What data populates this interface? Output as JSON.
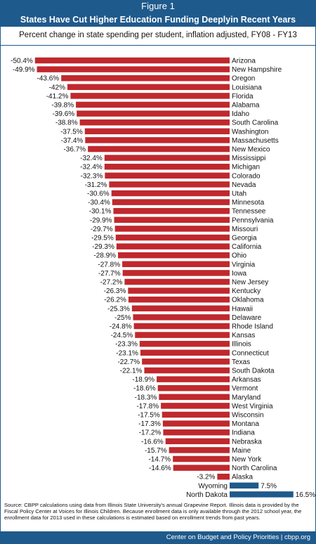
{
  "figure_label": "Figure 1",
  "colors": {
    "negative": "#c0282d",
    "positive": "#1f5a8c",
    "banner": "#1f5a8c"
  },
  "chart_data": {
    "type": "bar",
    "orientation": "horizontal",
    "title": "States Have Cut Higher Education Funding Deeplyin Recent Years",
    "subtitle": "Percent change in state spending per student, inflation adjusted, FY08 - FY13",
    "categories": [
      "Arizona",
      "New Hampshire",
      "Oregon",
      "Louisiana",
      "Florida",
      "Alabama",
      "Idaho",
      "South Carolina",
      "Washington",
      "Massachusetts",
      "New Mexico",
      "Mississippi",
      "Michigan",
      "Colorado",
      "Nevada",
      "Utah",
      "Minnesota",
      "Tennessee",
      "Pennsylvania",
      "Missouri",
      "Georgia",
      "California",
      "Ohio",
      "Virginia",
      "Iowa",
      "New Jersey",
      "Kentucky",
      "Oklahoma",
      "Hawaii",
      "Delaware",
      "Rhode Island",
      "Kansas",
      "Illinois",
      "Connecticut",
      "Texas",
      "South Dakota",
      "Arkansas",
      "Vermont",
      "Maryland",
      "West Virginia",
      "Wisconsin",
      "Montana",
      "Indiana",
      "Nebraska",
      "Maine",
      "New York",
      "North Carolina",
      "Alaska",
      "Wyoming",
      "North Dakota"
    ],
    "values": [
      -50.4,
      -49.9,
      -43.6,
      -42,
      -41.2,
      -39.8,
      -39.6,
      -38.8,
      -37.5,
      -37.4,
      -36.7,
      -32.4,
      -32.4,
      -32.3,
      -31.2,
      -30.6,
      -30.4,
      -30.1,
      -29.9,
      -29.7,
      -29.5,
      -29.3,
      -28.9,
      -27.8,
      -27.7,
      -27.2,
      -26.3,
      -26.2,
      -25.3,
      -25,
      -24.8,
      -24.5,
      -23.3,
      -23.1,
      -22.7,
      -22.1,
      -18.9,
      -18.6,
      -18.3,
      -17.8,
      -17.5,
      -17.3,
      -17.2,
      -16.6,
      -15.7,
      -14.7,
      -14.6,
      -3.2,
      7.5,
      16.5
    ],
    "value_labels": [
      "-50.4%",
      "-49.9%",
      "-43.6%",
      "-42%",
      "-41.2%",
      "-39.8%",
      "-39.6%",
      "-38.8%",
      "-37.5%",
      "-37.4%",
      "-36.7%",
      "-32.4%",
      "-32.4%",
      "-32.3%",
      "-31.2%",
      "-30.6%",
      "-30.4%",
      "-30.1%",
      "-29.9%",
      "-29.7%",
      "-29.5%",
      "-29.3%",
      "-28.9%",
      "-27.8%",
      "-27.7%",
      "-27.2%",
      "-26.3%",
      "-26.2%",
      "-25.3%",
      "-25%",
      "-24.8%",
      "-24.5%",
      "-23.3%",
      "-23.1%",
      "-22.7%",
      "-22.1%",
      "-18.9%",
      "-18.6%",
      "-18.3%",
      "-17.8%",
      "-17.5%",
      "-17.3%",
      "-17.2%",
      "-16.6%",
      "-15.7%",
      "-14.7%",
      "-14.6%",
      "-3.2%",
      "7.5%",
      "16.5%"
    ],
    "xlim": [
      -50.4,
      16.5
    ],
    "grid": false,
    "legend": "none"
  },
  "source": "Source: CBPP calculations using data from Illinois State University's annual Grapevine Report.  Illinois data is provided by the Fiscal Policy Center at Voices for Illinois Children.  Because enrollment data is only available through the 2012 school year, the enrollment data for 2013 used in these calculations is estimated based on enrollment trends from past years.",
  "footer": "Center on Budget and Policy Priorities | cbpp.org"
}
